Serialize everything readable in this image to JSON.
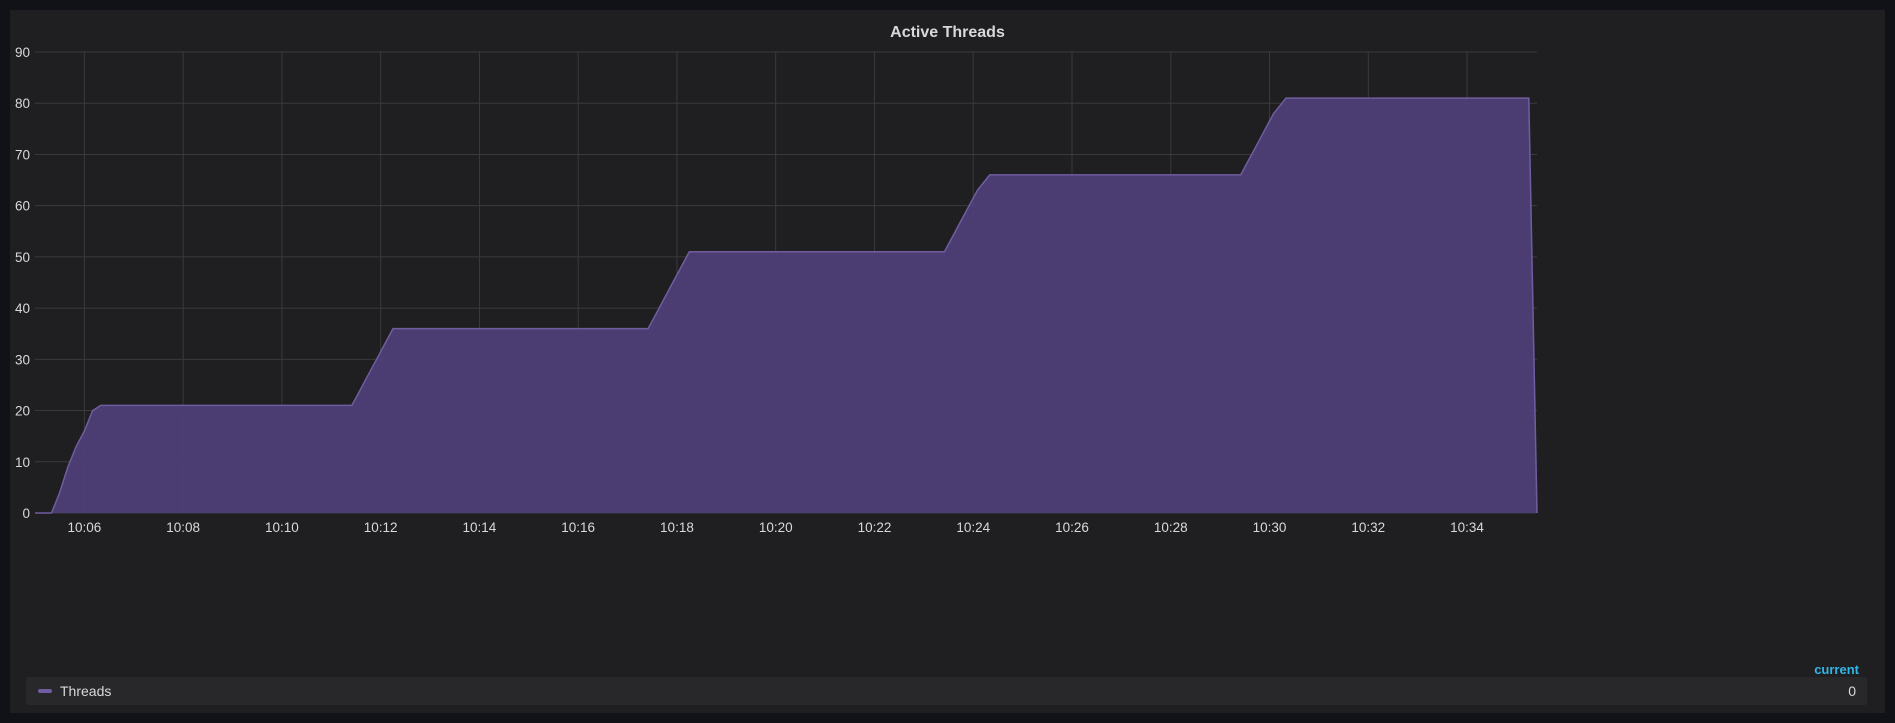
{
  "panel": {
    "title": "Active Threads"
  },
  "legend": {
    "header": "current",
    "items": [
      {
        "name": "Threads",
        "value": "0"
      }
    ]
  },
  "colors": {
    "series_fill": "#4e3f77",
    "series_line": "#705da0",
    "grid": "#3a3a3d",
    "text": "#d8d9da",
    "legend_header": "#33b5e5"
  },
  "chart_data": {
    "type": "area",
    "title": "Active Threads",
    "xlabel": "",
    "ylabel": "",
    "ylim": [
      0,
      90
    ],
    "xlim": [
      "10:05:00",
      "10:35:25"
    ],
    "y_ticks": [
      "0",
      "10",
      "20",
      "30",
      "40",
      "50",
      "60",
      "70",
      "80",
      "90"
    ],
    "x_ticks": [
      "10:06",
      "10:08",
      "10:10",
      "10:12",
      "10:14",
      "10:16",
      "10:18",
      "10:20",
      "10:22",
      "10:24",
      "10:26",
      "10:28",
      "10:30",
      "10:32",
      "10:34"
    ],
    "grid": true,
    "legend_position": "bottom",
    "series": [
      {
        "name": "Threads",
        "points": [
          [
            "10:05:00",
            0
          ],
          [
            "10:05:20",
            0
          ],
          [
            "10:05:30",
            4
          ],
          [
            "10:05:40",
            9
          ],
          [
            "10:05:50",
            13
          ],
          [
            "10:06:00",
            16
          ],
          [
            "10:06:10",
            20
          ],
          [
            "10:06:20",
            21
          ],
          [
            "10:11:25",
            21
          ],
          [
            "10:11:35",
            24
          ],
          [
            "10:11:45",
            27
          ],
          [
            "10:11:55",
            30
          ],
          [
            "10:12:05",
            33
          ],
          [
            "10:12:15",
            36
          ],
          [
            "10:17:25",
            36
          ],
          [
            "10:17:35",
            39
          ],
          [
            "10:17:45",
            42
          ],
          [
            "10:17:55",
            45
          ],
          [
            "10:18:05",
            48
          ],
          [
            "10:18:15",
            51
          ],
          [
            "10:23:25",
            51
          ],
          [
            "10:23:35",
            54
          ],
          [
            "10:23:45",
            57
          ],
          [
            "10:23:55",
            60
          ],
          [
            "10:24:05",
            63
          ],
          [
            "10:24:20",
            66
          ],
          [
            "10:29:25",
            66
          ],
          [
            "10:29:35",
            69
          ],
          [
            "10:29:45",
            72
          ],
          [
            "10:29:55",
            75
          ],
          [
            "10:30:05",
            78
          ],
          [
            "10:30:20",
            81
          ],
          [
            "10:35:15",
            81
          ],
          [
            "10:35:25",
            0
          ]
        ]
      }
    ]
  }
}
